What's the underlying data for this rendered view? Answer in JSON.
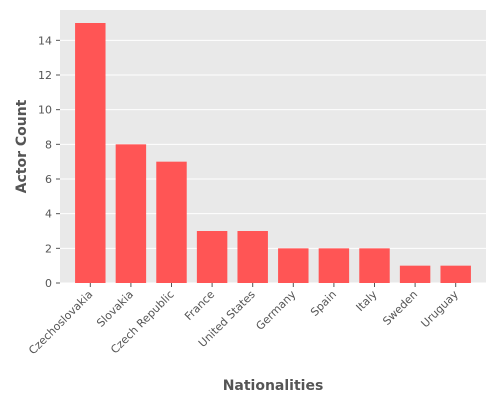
{
  "chart_data": {
    "type": "bar",
    "title": "",
    "xlabel": "Nationalities",
    "ylabel": "Actor Count",
    "categories": [
      "Czechoslovakia",
      "Slovakia",
      "Czech Republic",
      "France",
      "United States",
      "Germany",
      "Spain",
      "Italy",
      "Sweden",
      "Uruguay"
    ],
    "values": [
      15,
      8,
      7,
      3,
      3,
      2,
      2,
      2,
      1,
      1
    ],
    "ylim": [
      0,
      15.75
    ],
    "yticks": [
      0,
      2,
      4,
      6,
      8,
      10,
      12,
      14
    ],
    "grid": true,
    "legend": "none",
    "colors": {
      "bar": "#ff5555",
      "plot_background": "#e9e9e9",
      "grid": "#ffffff",
      "text": "#555555"
    }
  }
}
